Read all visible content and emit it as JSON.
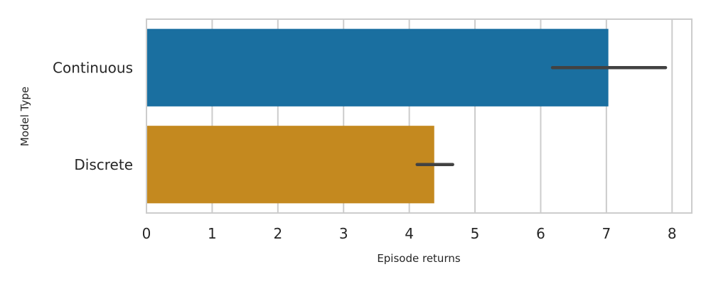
{
  "chart_data": {
    "type": "bar",
    "orientation": "horizontal",
    "categories": [
      "Continuous",
      "Discrete"
    ],
    "values": [
      7.03,
      4.38
    ],
    "error_bars": [
      [
        6.18,
        7.9
      ],
      [
        4.12,
        4.66
      ]
    ],
    "colors": [
      "#1a6fa0",
      "#c4891f"
    ],
    "xlabel": "Episode returns",
    "ylabel": "Model Type",
    "xlim": [
      0,
      8.3
    ],
    "x_ticks": [
      0,
      1,
      2,
      3,
      4,
      5,
      6,
      7,
      8
    ],
    "grid": true
  }
}
